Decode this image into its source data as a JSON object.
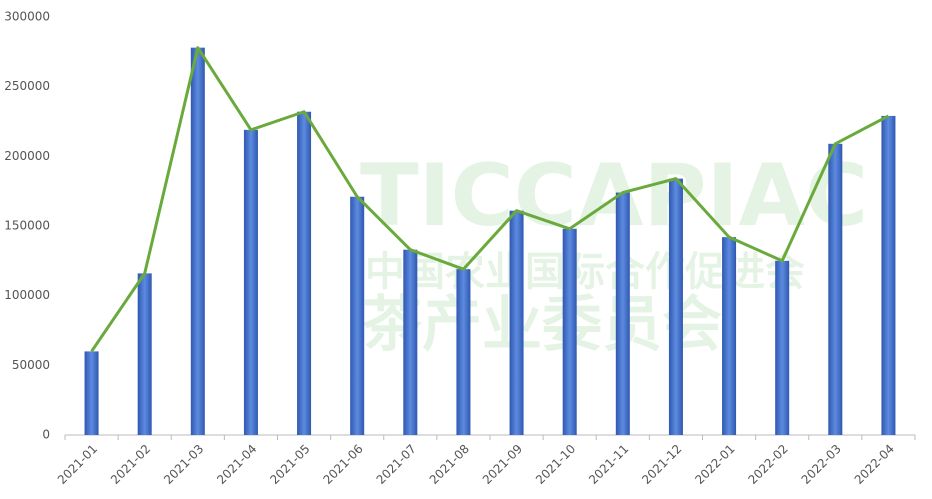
{
  "chart_data": {
    "type": "bar",
    "categories": [
      "2021-01",
      "2021-02",
      "2021-03",
      "2021-04",
      "2021-05",
      "2021-06",
      "2021-07",
      "2021-08",
      "2021-09",
      "2021-10",
      "2021-11",
      "2021-12",
      "2022-01",
      "2022-02",
      "2022-03",
      "2022-04"
    ],
    "series": [
      {
        "type": "bar",
        "color": "#3a66c4",
        "values": [
          60000,
          116000,
          278000,
          219000,
          232000,
          171000,
          133000,
          119000,
          161000,
          148000,
          174000,
          184000,
          142000,
          125000,
          209000,
          229000
        ]
      },
      {
        "type": "line",
        "color": "#6aaa3c",
        "values": [
          60000,
          116000,
          278000,
          219000,
          232000,
          171000,
          133000,
          119000,
          161000,
          148000,
          174000,
          184000,
          142000,
          125000,
          209000,
          229000
        ]
      }
    ],
    "ylim": [
      0,
      300000
    ],
    "yticks": [
      0,
      50000,
      100000,
      150000,
      200000,
      250000,
      300000
    ],
    "grid": false,
    "watermark": [
      "TICCAPIAC",
      "中国农业国际合作促进会",
      "茶产业委员会"
    ]
  }
}
